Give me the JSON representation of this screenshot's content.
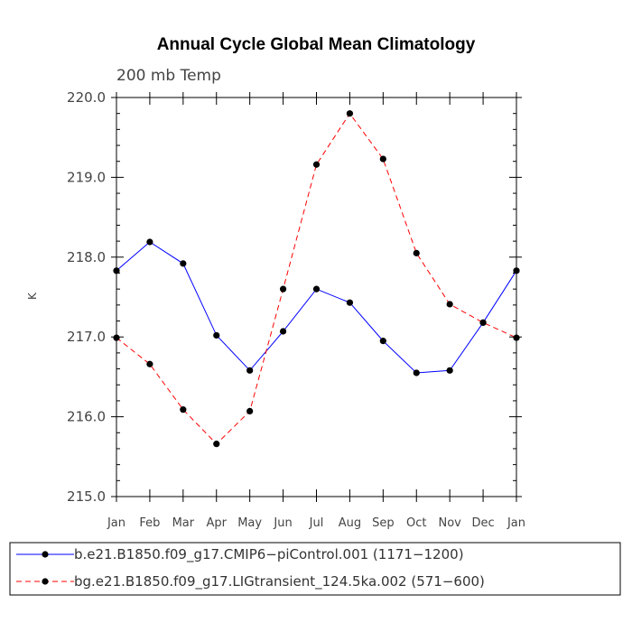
{
  "chart_data": {
    "type": "line",
    "title": "Annual Cycle Global Mean Climatology",
    "subtitle": "200 mb Temp",
    "xlabel": "",
    "ylabel": "K",
    "categories": [
      "Jan",
      "Feb",
      "Mar",
      "Apr",
      "May",
      "Jun",
      "Jul",
      "Aug",
      "Sep",
      "Oct",
      "Nov",
      "Dec",
      "Jan"
    ],
    "yticks": [
      "215.0",
      "216.0",
      "217.0",
      "218.0",
      "219.0",
      "220.0"
    ],
    "ylim": [
      215.0,
      220.0
    ],
    "grid": false,
    "legend_position": "bottom",
    "series": [
      {
        "name": "b.e21.B1850.f09_g17.CMIP6−piControl.001 (1171−1200)",
        "color": "#0000ff",
        "line_style": "solid",
        "values": [
          217.83,
          218.19,
          217.92,
          217.02,
          216.58,
          217.07,
          217.6,
          217.43,
          216.95,
          216.55,
          216.58,
          217.18,
          217.83
        ]
      },
      {
        "name": "bg.e21.B1850.f09_g17.LIGtransient_124.5ka.002 (571−600)",
        "color": "#ff0000",
        "line_style": "dashed",
        "values": [
          216.99,
          216.66,
          216.09,
          215.66,
          216.07,
          217.6,
          219.16,
          219.8,
          219.23,
          218.05,
          217.41,
          217.18,
          216.99
        ]
      }
    ]
  }
}
